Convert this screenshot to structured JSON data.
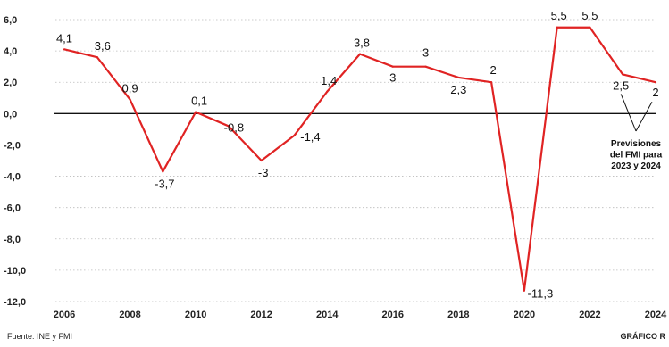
{
  "chart_data": {
    "type": "line",
    "x": [
      2006,
      2007,
      2008,
      2009,
      2010,
      2011,
      2012,
      2013,
      2014,
      2015,
      2016,
      2017,
      2018,
      2019,
      2020,
      2021,
      2022,
      2023,
      2024
    ],
    "series": [
      {
        "values": [
          4.1,
          3.6,
          0.9,
          -3.7,
          0.1,
          -0.8,
          -3,
          -1.4,
          1.4,
          3.8,
          3,
          3,
          2.3,
          2,
          -11.3,
          5.5,
          5.5,
          2.5,
          2
        ]
      }
    ],
    "data_labels": [
      "4,1",
      "3,6",
      "0,9",
      "-3,7",
      "0,1",
      "-0,8",
      "-3",
      "-1,4",
      "1,4",
      "3,8",
      "3",
      "3",
      "2,3",
      "2",
      "-11,3",
      "5,5",
      "5,5",
      "2,5",
      "2"
    ],
    "y_ticks": [
      6,
      4,
      2,
      0,
      -2,
      -4,
      -6,
      -8,
      -10,
      -12
    ],
    "y_tick_labels": [
      "6,0",
      "4,0",
      "2,0",
      "0,0",
      "-2,0",
      "-4,0",
      "-6,0",
      "-8,0",
      "-10,0",
      "-12,0"
    ],
    "x_ticks": [
      2006,
      2008,
      2010,
      2012,
      2014,
      2016,
      2018,
      2020,
      2022,
      2024
    ],
    "x_tick_labels": [
      "2006",
      "2008",
      "2010",
      "2012",
      "2014",
      "2016",
      "2018",
      "2020",
      "2022",
      "2024"
    ],
    "xlim": [
      2006,
      2024
    ],
    "ylim": [
      -12,
      6
    ],
    "grid": "horizontal-dotted",
    "annotation": {
      "lines": [
        "Previsiones",
        "del FMI para",
        "2023 y 2024"
      ],
      "points_to": [
        2023,
        2024
      ]
    },
    "colors": {
      "line": "#e02323",
      "zero_line": "#111111",
      "grid": "#bbbbbb"
    }
  },
  "footer": {
    "source": "Fuente: INE y FMI",
    "credit": "GRÁFICO R"
  }
}
